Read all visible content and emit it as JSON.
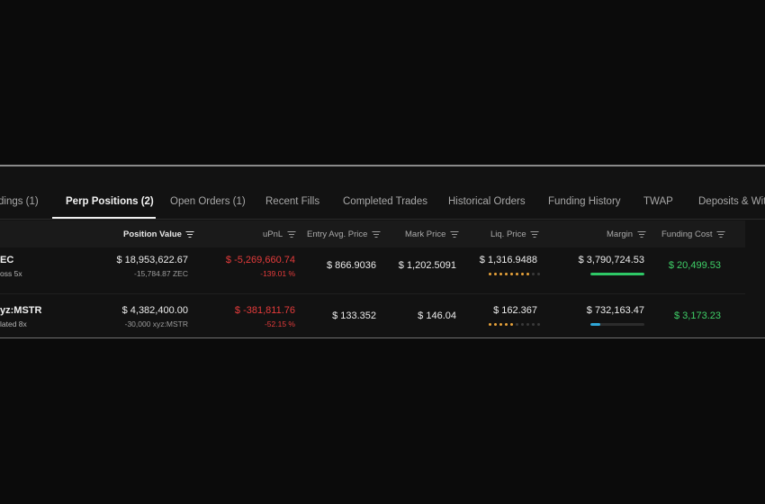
{
  "tabs": [
    {
      "label": "dings (1)",
      "active": false
    },
    {
      "label": "Perp Positions (2)",
      "active": true
    },
    {
      "label": "Open Orders (1)",
      "active": false
    },
    {
      "label": "Recent Fills",
      "active": false
    },
    {
      "label": "Completed Trades",
      "active": false
    },
    {
      "label": "Historical Orders",
      "active": false
    },
    {
      "label": "Funding History",
      "active": false
    },
    {
      "label": "TWAP",
      "active": false
    },
    {
      "label": "Deposits & With",
      "active": false
    }
  ],
  "columns": {
    "position_value": "Position Value",
    "upnl": "uPnL",
    "entry": "Entry Avg. Price",
    "mark": "Mark Price",
    "liq": "Liq. Price",
    "margin": "Margin",
    "funding": "Funding Cost"
  },
  "rows": [
    {
      "coin": "EC",
      "mode": "oss 5x",
      "position_value": "$ 18,953,622.67",
      "size": "-15,784.87 ZEC",
      "upnl": "$ -5,269,660.74",
      "upnl_pct": "-139.01 %",
      "entry": "$ 866.9036",
      "mark": "$ 1,202.5091",
      "liq": "$ 1,316.9488",
      "liq_level": 8,
      "margin": "$ 3,790,724.53",
      "margin_fill": 1.0,
      "margin_color": "#2ec866",
      "funding": "$ 20,499.53"
    },
    {
      "coin": "yz:MSTR",
      "mode": "lated 8x",
      "position_value": "$ 4,382,400.00",
      "size": "-30,000 xyz:MSTR",
      "upnl": "$ -381,811.76",
      "upnl_pct": "-52.15 %",
      "entry": "$ 133.352",
      "mark": "$ 146.04",
      "liq": "$ 162.367",
      "liq_level": 5,
      "margin": "$ 732,163.47",
      "margin_fill": 0.18,
      "margin_color": "#2fa7d8",
      "funding": "$ 3,173.23"
    }
  ]
}
